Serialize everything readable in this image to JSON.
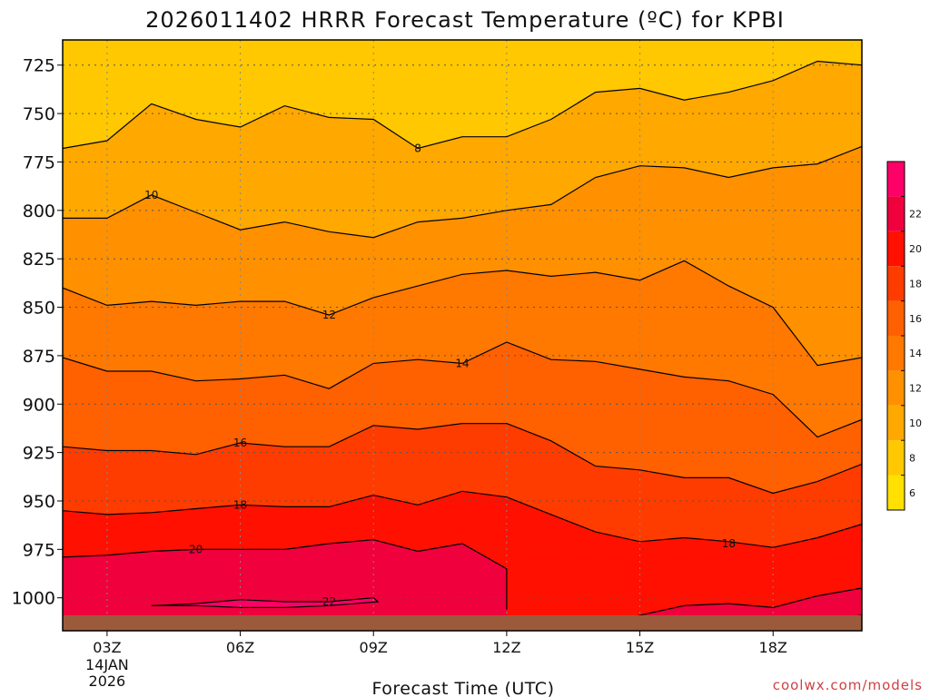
{
  "chart_data": {
    "type": "heatmap",
    "title": "2026011402 HRRR Forecast Temperature (ºC) for KPBI",
    "xlabel": "Forecast Time (UTC)",
    "ylabel": "",
    "x_range": [
      2,
      20
    ],
    "y_range_hPa": [
      712,
      1017
    ],
    "y_ticks": [
      725,
      750,
      775,
      800,
      825,
      850,
      875,
      900,
      925,
      950,
      975,
      1000
    ],
    "x_ticks": [
      {
        "x": 3,
        "label": "03Z",
        "sub1": "14JAN",
        "sub2": "2026"
      },
      {
        "x": 6,
        "label": "06Z",
        "sub1": "",
        "sub2": ""
      },
      {
        "x": 9,
        "label": "09Z",
        "sub1": "",
        "sub2": ""
      },
      {
        "x": 12,
        "label": "12Z",
        "sub1": "",
        "sub2": ""
      },
      {
        "x": 15,
        "label": "15Z",
        "sub1": "",
        "sub2": ""
      },
      {
        "x": 18,
        "label": "18Z",
        "sub1": "",
        "sub2": ""
      }
    ],
    "colorbar": {
      "levels": [
        6,
        8,
        10,
        12,
        14,
        16,
        18,
        20,
        22
      ],
      "bands": [
        {
          "from": 4,
          "to": 6,
          "color": "#ffe000"
        },
        {
          "from": 6,
          "to": 8,
          "color": "#ffc800"
        },
        {
          "from": 8,
          "to": 10,
          "color": "#ffa800"
        },
        {
          "from": 10,
          "to": 12,
          "color": "#ff9000"
        },
        {
          "from": 12,
          "to": 14,
          "color": "#ff7800"
        },
        {
          "from": 14,
          "to": 16,
          "color": "#ff6000"
        },
        {
          "from": 16,
          "to": 18,
          "color": "#ff3c00"
        },
        {
          "from": 18,
          "to": 20,
          "color": "#ff1000"
        },
        {
          "from": 20,
          "to": 22,
          "color": "#f0003c"
        },
        {
          "from": 22,
          "to": 24,
          "color": "#ff0068"
        }
      ]
    },
    "contours": [
      {
        "level": 8,
        "label_at": 10,
        "points": [
          [
            2,
            768
          ],
          [
            3,
            764
          ],
          [
            4,
            745
          ],
          [
            5,
            753
          ],
          [
            6,
            757
          ],
          [
            7,
            746
          ],
          [
            8,
            752
          ],
          [
            9,
            753
          ],
          [
            10,
            768
          ],
          [
            11,
            762
          ],
          [
            12,
            762
          ],
          [
            13,
            753
          ],
          [
            14,
            739
          ],
          [
            15,
            737
          ],
          [
            16,
            743
          ],
          [
            17,
            739
          ],
          [
            18,
            733
          ],
          [
            19,
            723
          ],
          [
            20,
            725
          ]
        ]
      },
      {
        "level": 10,
        "label_at": 4,
        "points": [
          [
            2,
            804
          ],
          [
            3,
            804
          ],
          [
            4,
            792
          ],
          [
            5,
            801
          ],
          [
            6,
            810
          ],
          [
            7,
            806
          ],
          [
            8,
            811
          ],
          [
            9,
            814
          ],
          [
            10,
            806
          ],
          [
            11,
            804
          ],
          [
            12,
            800
          ],
          [
            13,
            797
          ],
          [
            14,
            783
          ],
          [
            15,
            777
          ],
          [
            16,
            778
          ],
          [
            17,
            783
          ],
          [
            18,
            778
          ],
          [
            19,
            776
          ],
          [
            20,
            767
          ]
        ]
      },
      {
        "level": 12,
        "label_at": 8,
        "points": [
          [
            2,
            840
          ],
          [
            3,
            849
          ],
          [
            4,
            847
          ],
          [
            5,
            849
          ],
          [
            6,
            847
          ],
          [
            7,
            847
          ],
          [
            8,
            854
          ],
          [
            9,
            845
          ],
          [
            10,
            839
          ],
          [
            11,
            833
          ],
          [
            12,
            831
          ],
          [
            13,
            834
          ],
          [
            14,
            832
          ],
          [
            15,
            836
          ],
          [
            16,
            826
          ],
          [
            17,
            839
          ],
          [
            18,
            850
          ],
          [
            19,
            880
          ],
          [
            20,
            876
          ]
        ]
      },
      {
        "level": 14,
        "label_at": 11,
        "points": [
          [
            2,
            876
          ],
          [
            3,
            883
          ],
          [
            4,
            883
          ],
          [
            5,
            888
          ],
          [
            6,
            887
          ],
          [
            7,
            885
          ],
          [
            8,
            892
          ],
          [
            9,
            879
          ],
          [
            10,
            877
          ],
          [
            11,
            879
          ],
          [
            12,
            868
          ],
          [
            13,
            877
          ],
          [
            14,
            878
          ],
          [
            15,
            882
          ],
          [
            16,
            886
          ],
          [
            17,
            888
          ],
          [
            18,
            895
          ],
          [
            19,
            917
          ],
          [
            20,
            908
          ]
        ]
      },
      {
        "level": 16,
        "label_at": 6,
        "points": [
          [
            2,
            922
          ],
          [
            3,
            924
          ],
          [
            4,
            924
          ],
          [
            5,
            926
          ],
          [
            6,
            920
          ],
          [
            7,
            922
          ],
          [
            8,
            922
          ],
          [
            9,
            911
          ],
          [
            10,
            913
          ],
          [
            11,
            910
          ],
          [
            12,
            910
          ],
          [
            13,
            919
          ],
          [
            14,
            932
          ],
          [
            15,
            934
          ],
          [
            16,
            938
          ],
          [
            17,
            938
          ],
          [
            18,
            946
          ],
          [
            19,
            940
          ],
          [
            20,
            931
          ]
        ]
      },
      {
        "level": 18,
        "label_at": 6,
        "points": [
          [
            2,
            955
          ],
          [
            3,
            957
          ],
          [
            4,
            956
          ],
          [
            5,
            954
          ],
          [
            6,
            952
          ],
          [
            7,
            953
          ],
          [
            8,
            953
          ],
          [
            9,
            947
          ],
          [
            10,
            952
          ],
          [
            11,
            945
          ],
          [
            12,
            948
          ],
          [
            13,
            957
          ],
          [
            14,
            966
          ],
          [
            15,
            971
          ],
          [
            16,
            969
          ],
          [
            17,
            971
          ],
          [
            18,
            974
          ],
          [
            19,
            969
          ],
          [
            20,
            962
          ]
        ]
      },
      {
        "level": 20,
        "label_at": 5,
        "points": [
          [
            2,
            979
          ],
          [
            3,
            978
          ],
          [
            4,
            976
          ],
          [
            5,
            975
          ],
          [
            6,
            975
          ],
          [
            7,
            975
          ],
          [
            8,
            972
          ],
          [
            9,
            970
          ],
          [
            10,
            976
          ],
          [
            11,
            972
          ],
          [
            12,
            985
          ],
          [
            12,
            1006
          ]
        ]
      },
      {
        "level": 22,
        "label_at": 8,
        "points": [
          [
            4,
            1004
          ],
          [
            5,
            1003
          ],
          [
            6,
            1001
          ],
          [
            7,
            1002
          ],
          [
            8,
            1002
          ],
          [
            9,
            1000
          ],
          [
            9.1,
            1002
          ],
          [
            8,
            1004
          ],
          [
            7,
            1005
          ],
          [
            6,
            1005
          ],
          [
            5,
            1004
          ],
          [
            4,
            1004
          ]
        ]
      }
    ],
    "label_values": [
      "8",
      "10",
      "12",
      "14",
      "16",
      "18",
      "20",
      "22"
    ],
    "upper_right_18_label": "18"
  },
  "credit": "coolwx.com/models"
}
